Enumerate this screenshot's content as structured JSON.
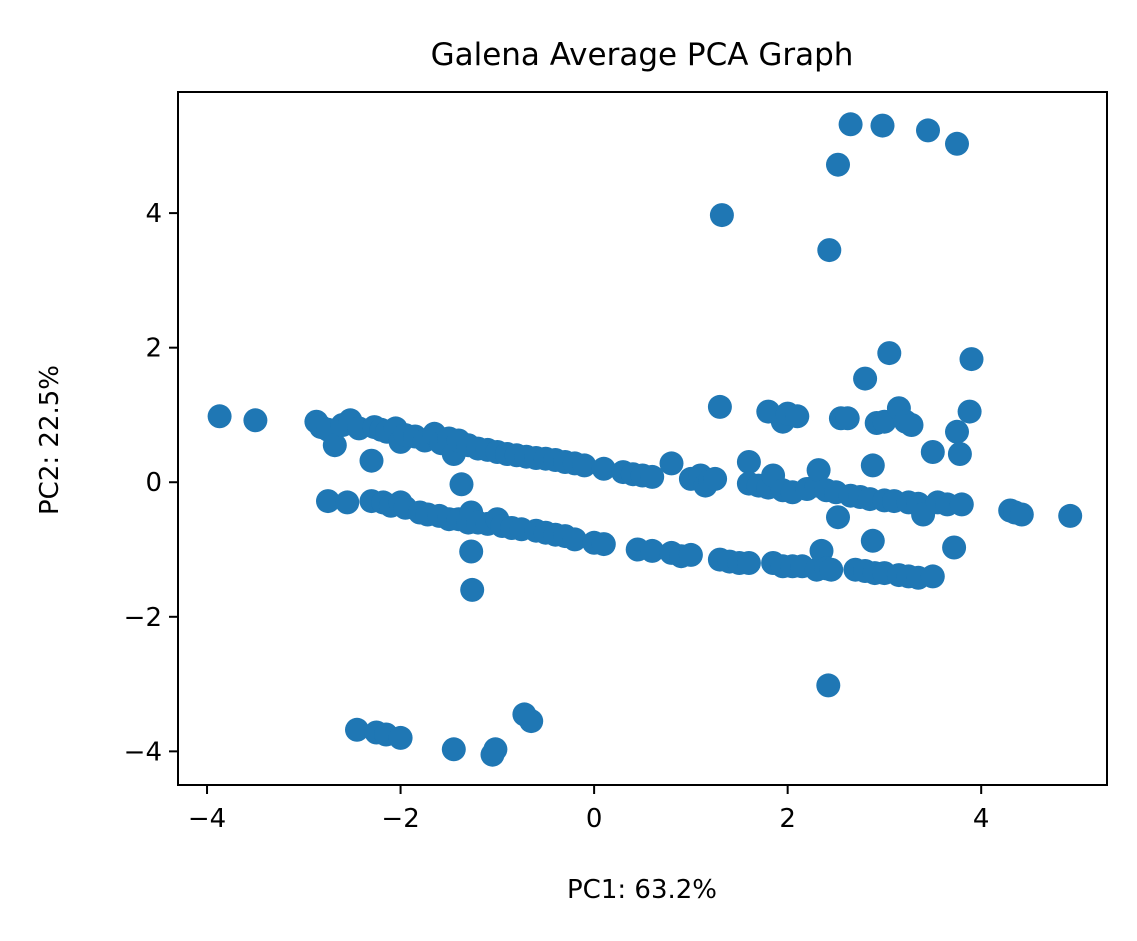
{
  "chart_data": {
    "type": "scatter",
    "title": "Galena Average PCA Graph",
    "xlabel": "PC1: 63.2%",
    "ylabel": "PC2: 22.5%",
    "xlim": [
      -4.3,
      5.3
    ],
    "ylim": [
      -4.5,
      5.8
    ],
    "xticks": [
      -4,
      -2,
      0,
      2,
      4
    ],
    "xtick_labels": [
      "−4",
      "−2",
      "0",
      "2",
      "4"
    ],
    "yticks": [
      -4,
      -2,
      0,
      2,
      4
    ],
    "ytick_labels": [
      "−4",
      "−2",
      "0",
      "2",
      "4"
    ],
    "grid": false,
    "color": "#1f77b4",
    "points": [
      [
        -3.87,
        0.98
      ],
      [
        -3.5,
        0.92
      ],
      [
        -2.87,
        0.9
      ],
      [
        -2.82,
        0.82
      ],
      [
        -2.75,
        0.78
      ],
      [
        -2.68,
        0.55
      ],
      [
        -2.6,
        0.85
      ],
      [
        -2.52,
        0.92
      ],
      [
        -2.43,
        0.8
      ],
      [
        -2.3,
        0.32
      ],
      [
        -2.27,
        0.82
      ],
      [
        -2.2,
        0.78
      ],
      [
        -2.14,
        0.75
      ],
      [
        -2.05,
        0.8
      ],
      [
        -2.0,
        0.6
      ],
      [
        -1.95,
        0.7
      ],
      [
        -1.85,
        0.68
      ],
      [
        -1.75,
        0.62
      ],
      [
        -1.65,
        0.72
      ],
      [
        -1.58,
        0.58
      ],
      [
        -1.5,
        0.65
      ],
      [
        -1.45,
        0.42
      ],
      [
        -1.4,
        0.62
      ],
      [
        -1.3,
        0.55
      ],
      [
        -1.2,
        0.5
      ],
      [
        -1.1,
        0.48
      ],
      [
        -1.0,
        0.45
      ],
      [
        -0.9,
        0.42
      ],
      [
        -0.8,
        0.4
      ],
      [
        -0.7,
        0.38
      ],
      [
        -0.6,
        0.36
      ],
      [
        -0.5,
        0.35
      ],
      [
        -0.4,
        0.33
      ],
      [
        -0.3,
        0.3
      ],
      [
        -0.2,
        0.28
      ],
      [
        -0.1,
        0.25
      ],
      [
        0.1,
        0.2
      ],
      [
        0.3,
        0.15
      ],
      [
        0.4,
        0.12
      ],
      [
        0.5,
        0.1
      ],
      [
        0.6,
        0.08
      ],
      [
        0.8,
        0.28
      ],
      [
        1.0,
        0.05
      ],
      [
        1.1,
        0.1
      ],
      [
        1.15,
        -0.05
      ],
      [
        1.2,
        0.03
      ],
      [
        1.25,
        0.05
      ],
      [
        1.3,
        1.12
      ],
      [
        1.6,
        0.3
      ],
      [
        1.6,
        -0.02
      ],
      [
        1.7,
        -0.05
      ],
      [
        1.8,
        -0.08
      ],
      [
        1.8,
        1.05
      ],
      [
        1.95,
        0.9
      ],
      [
        2.0,
        1.02
      ],
      [
        2.1,
        0.98
      ],
      [
        1.85,
        0.1
      ],
      [
        1.95,
        -0.12
      ],
      [
        2.05,
        -0.15
      ],
      [
        2.2,
        -0.1
      ],
      [
        2.3,
        -0.05
      ],
      [
        2.32,
        0.18
      ],
      [
        2.4,
        -0.12
      ],
      [
        2.5,
        -0.15
      ],
      [
        2.55,
        0.95
      ],
      [
        2.62,
        0.95
      ],
      [
        2.52,
        -0.52
      ],
      [
        2.65,
        -0.2
      ],
      [
        2.75,
        -0.22
      ],
      [
        2.85,
        -0.25
      ],
      [
        2.88,
        0.25
      ],
      [
        2.92,
        0.88
      ],
      [
        3.0,
        0.9
      ],
      [
        3.0,
        -0.27
      ],
      [
        3.1,
        -0.28
      ],
      [
        3.15,
        1.1
      ],
      [
        3.22,
        0.9
      ],
      [
        3.28,
        0.85
      ],
      [
        3.25,
        -0.3
      ],
      [
        3.35,
        -0.32
      ],
      [
        3.4,
        -0.48
      ],
      [
        3.5,
        0.45
      ],
      [
        3.55,
        -0.3
      ],
      [
        3.65,
        -0.33
      ],
      [
        3.75,
        0.75
      ],
      [
        3.78,
        0.42
      ],
      [
        3.8,
        -0.33
      ],
      [
        3.88,
        1.05
      ],
      [
        3.05,
        1.92
      ],
      [
        3.9,
        1.83
      ],
      [
        2.8,
        1.54
      ],
      [
        4.3,
        -0.42
      ],
      [
        4.35,
        -0.45
      ],
      [
        4.42,
        -0.48
      ],
      [
        4.92,
        -0.5
      ],
      [
        -2.75,
        -0.28
      ],
      [
        -2.55,
        -0.3
      ],
      [
        -2.3,
        -0.28
      ],
      [
        -2.18,
        -0.3
      ],
      [
        -2.1,
        -0.35
      ],
      [
        -2.0,
        -0.3
      ],
      [
        -1.95,
        -0.38
      ],
      [
        -1.8,
        -0.45
      ],
      [
        -1.72,
        -0.48
      ],
      [
        -1.6,
        -0.5
      ],
      [
        -1.5,
        -0.55
      ],
      [
        -1.4,
        -0.55
      ],
      [
        -1.3,
        -0.6
      ],
      [
        -1.27,
        -0.45
      ],
      [
        -1.2,
        -0.6
      ],
      [
        -1.1,
        -0.62
      ],
      [
        -1.0,
        -0.55
      ],
      [
        -0.95,
        -0.65
      ],
      [
        -0.85,
        -0.68
      ],
      [
        -0.75,
        -0.7
      ],
      [
        -0.6,
        -0.72
      ],
      [
        -0.5,
        -0.75
      ],
      [
        -0.4,
        -0.78
      ],
      [
        -0.3,
        -0.8
      ],
      [
        -0.2,
        -0.85
      ],
      [
        0.0,
        -0.9
      ],
      [
        0.1,
        -0.92
      ],
      [
        0.45,
        -1.0
      ],
      [
        0.6,
        -1.02
      ],
      [
        0.8,
        -1.05
      ],
      [
        0.9,
        -1.1
      ],
      [
        1.0,
        -1.08
      ],
      [
        1.3,
        -1.15
      ],
      [
        1.4,
        -1.18
      ],
      [
        1.5,
        -1.2
      ],
      [
        1.6,
        -1.2
      ],
      [
        1.85,
        -1.2
      ],
      [
        1.95,
        -1.25
      ],
      [
        2.05,
        -1.25
      ],
      [
        2.15,
        -1.25
      ],
      [
        2.3,
        -1.3
      ],
      [
        2.35,
        -1.02
      ],
      [
        2.4,
        -1.28
      ],
      [
        2.45,
        -1.3
      ],
      [
        2.7,
        -1.3
      ],
      [
        2.8,
        -1.32
      ],
      [
        2.9,
        -1.35
      ],
      [
        3.0,
        -1.35
      ],
      [
        3.15,
        -1.38
      ],
      [
        3.25,
        -1.4
      ],
      [
        3.35,
        -1.42
      ],
      [
        3.5,
        -1.4
      ],
      [
        2.88,
        -0.87
      ],
      [
        3.72,
        -0.97
      ],
      [
        -1.37,
        -0.03
      ],
      [
        -1.27,
        -1.03
      ],
      [
        -1.26,
        -1.6
      ],
      [
        2.42,
        -3.02
      ],
      [
        -2.45,
        -3.68
      ],
      [
        -2.25,
        -3.72
      ],
      [
        -2.15,
        -3.75
      ],
      [
        -2.0,
        -3.8
      ],
      [
        -1.45,
        -3.97
      ],
      [
        -1.05,
        -4.05
      ],
      [
        -1.02,
        -3.97
      ],
      [
        -0.72,
        -3.45
      ],
      [
        -0.65,
        -3.55
      ],
      [
        1.32,
        3.97
      ],
      [
        2.43,
        3.45
      ],
      [
        2.52,
        4.72
      ],
      [
        2.65,
        5.32
      ],
      [
        2.98,
        5.3
      ],
      [
        3.45,
        5.23
      ],
      [
        3.75,
        5.03
      ]
    ]
  }
}
